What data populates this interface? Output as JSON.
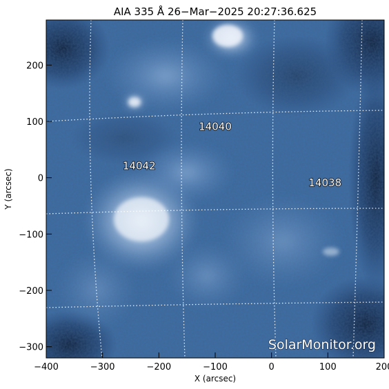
{
  "figure": {
    "title": "AIA 335 Å 26−Mar−2025  20:27:36.625",
    "credit": "SolarMonitor.org",
    "xlabel": "X (arcsec)",
    "ylabel": "Y (arcsec)",
    "colors": {
      "background": "#ffffff",
      "sun_dark": "#0e1f3a",
      "sun_mid": "#3d6fa8",
      "sun_bright": "#dfe9f5",
      "grid": "#ffffff"
    }
  },
  "chart_data": {
    "type": "heatmap",
    "x_ticks": [
      "−400",
      "−300",
      "−200",
      "−100",
      "0",
      "100",
      "200"
    ],
    "y_ticks": [
      "−300",
      "−200",
      "−100",
      "0",
      "100",
      "200"
    ],
    "xlim": [
      -400,
      200
    ],
    "ylim": [
      -320,
      280
    ],
    "grid": "heliographic dotted grid lines",
    "regions": [
      {
        "label": "14040",
        "x": -100,
        "y": 85
      },
      {
        "label": "14042",
        "x": -235,
        "y": 15
      },
      {
        "label": "14038",
        "x": 95,
        "y": -15
      }
    ]
  }
}
